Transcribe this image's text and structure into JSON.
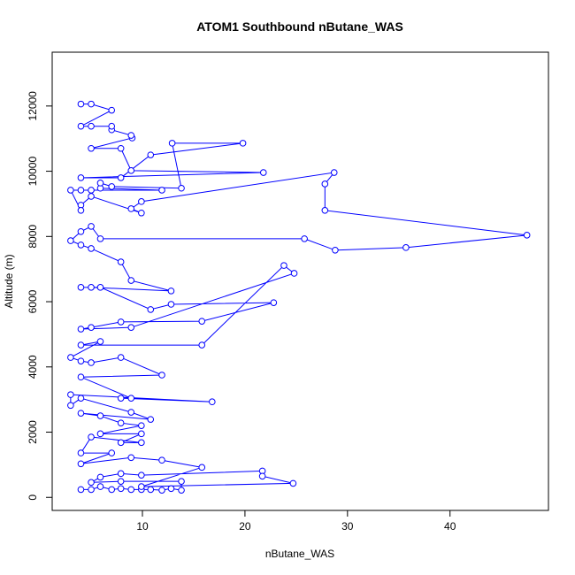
{
  "chart_data": {
    "type": "line",
    "title": "ATOM1 Southbound nButane_WAS",
    "xlabel": "nButane_WAS",
    "ylabel": "Altitude (m)",
    "color": "#0000ff",
    "markers": true,
    "xlim": [
      1.2,
      49.6
    ],
    "ylim": [
      -400,
      13650
    ],
    "xticks": [
      10,
      20,
      30,
      40
    ],
    "yticks": [
      0,
      2000,
      4000,
      6000,
      8000,
      10000,
      12000
    ],
    "x": [
      4,
      5,
      5.9,
      7,
      7.9,
      8.9,
      9.9,
      10.8,
      11.9,
      12.8,
      13.8,
      13.8,
      7.9,
      5,
      5.9,
      7.9,
      9.9,
      21.7,
      21.7,
      24.7,
      9.9,
      15.8,
      11.9,
      8.9,
      4,
      7,
      4,
      5,
      9.9,
      7.9,
      9.9,
      5.9,
      9.9,
      7.9,
      5.9,
      4,
      10.8,
      8.9,
      4,
      3,
      3,
      16.8,
      7.9,
      8.9,
      4,
      11.9,
      7.9,
      5,
      4,
      3,
      5.9,
      4,
      15.8,
      23.8,
      24.8,
      8.9,
      4,
      5,
      7.9,
      15.8,
      22.8,
      12.8,
      10.8,
      5.9,
      4,
      5,
      12.8,
      8.9,
      7.9,
      5,
      4,
      3,
      4,
      5,
      5.9,
      25.8,
      28.8,
      35.7,
      47.5,
      27.8,
      27.8,
      28.7,
      9.9,
      8.9,
      9.9,
      5,
      4,
      4,
      3,
      4,
      5,
      11.9,
      5.9,
      5.9,
      7,
      13.8,
      12.9,
      19.8,
      10.8,
      7.9,
      4,
      21.8,
      8.9,
      7.9,
      5,
      9,
      8.9,
      7,
      7,
      5,
      4,
      7,
      5,
      4
    ],
    "series": [
      {
        "name": "Altitude (m)",
        "values": [
          240,
          240,
          330,
          240,
          270,
          240,
          240,
          240,
          220,
          270,
          220,
          490,
          490,
          460,
          620,
          730,
          680,
          810,
          650,
          430,
          330,
          920,
          1140,
          1220,
          1030,
          1360,
          1360,
          1850,
          1680,
          1680,
          1950,
          1950,
          2200,
          2280,
          2500,
          2580,
          2390,
          2610,
          3040,
          2820,
          3150,
          2930,
          3040,
          3040,
          3690,
          3750,
          4290,
          4130,
          4180,
          4290,
          4780,
          4670,
          4670,
          7110,
          6870,
          5210,
          5160,
          5210,
          5380,
          5400,
          5970,
          5920,
          5760,
          6440,
          6440,
          6440,
          6330,
          6650,
          7220,
          7630,
          7740,
          7870,
          8150,
          8310,
          7930,
          7930,
          7580,
          7660,
          8040,
          8800,
          9610,
          9960,
          9070,
          8850,
          8720,
          9230,
          8960,
          8800,
          9420,
          9420,
          9420,
          9420,
          9480,
          9640,
          9530,
          9480,
          10860,
          10860,
          10500,
          9800,
          9800,
          9960,
          10020,
          10700,
          10700,
          11020,
          11100,
          11270,
          11380,
          11380,
          11380,
          11870,
          12060,
          12060
        ]
      }
    ]
  }
}
